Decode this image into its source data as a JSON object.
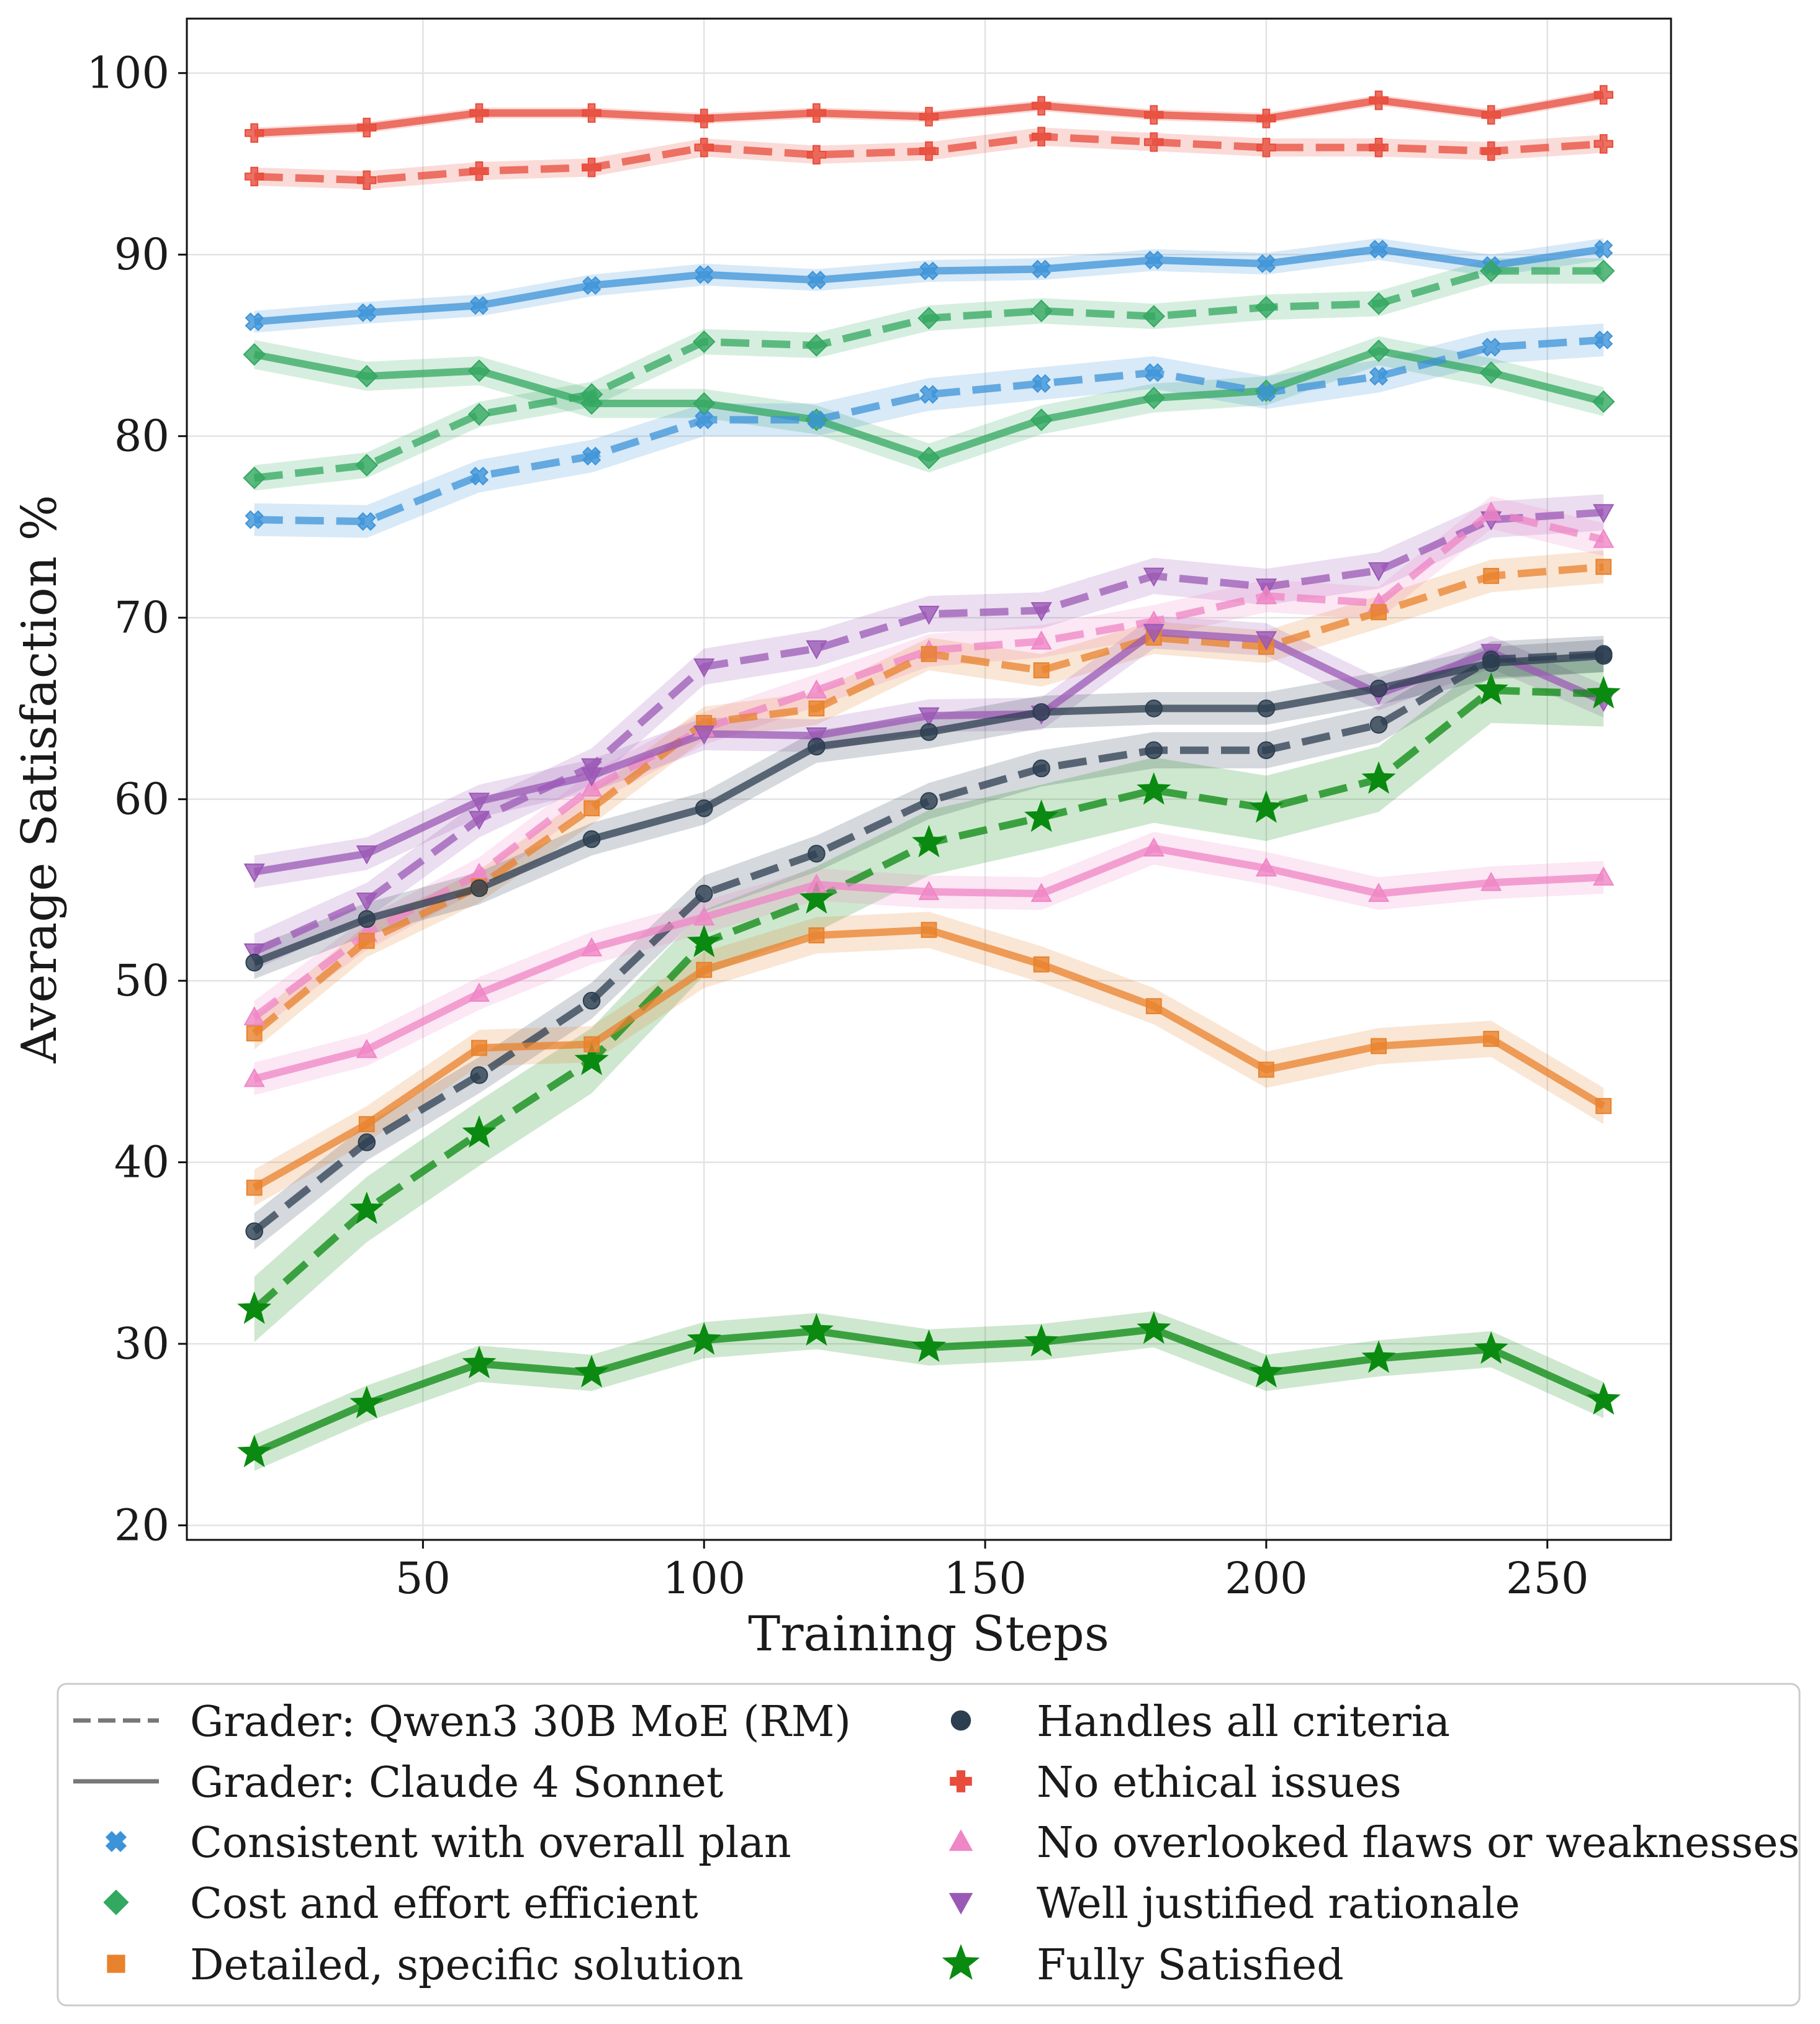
{
  "chart_data": {
    "type": "line",
    "title": "",
    "xlabel": "Training Steps",
    "ylabel": "Average Satisfaction %",
    "xlim": [
      8,
      272
    ],
    "ylim": [
      19.2,
      103
    ],
    "xticks": [
      50,
      100,
      150,
      200,
      250
    ],
    "yticks": [
      20,
      30,
      40,
      50,
      60,
      70,
      80,
      90,
      100
    ],
    "x": [
      20,
      40,
      60,
      80,
      100,
      120,
      140,
      160,
      180,
      200,
      220,
      240,
      260
    ],
    "grid": true,
    "legend_position": "bottom",
    "legend": {
      "styles": [
        {
          "label": "Grader: Qwen3 30B MoE (RM)",
          "linestyle": "dashed"
        },
        {
          "label": "Grader: Claude 4 Sonnet",
          "linestyle": "solid"
        }
      ],
      "criteria": [
        {
          "label": "Consistent with overall plan",
          "color": "#3d93d8",
          "marker": "x"
        },
        {
          "label": "Cost and effort efficient",
          "color": "#33a860",
          "marker": "diamond"
        },
        {
          "label": "Detailed, specific solution",
          "color": "#e8822c",
          "marker": "square"
        },
        {
          "label": "Handles all criteria",
          "color": "#2c3e50",
          "marker": "circle"
        },
        {
          "label": "No ethical issues",
          "color": "#e74c3c",
          "marker": "plus"
        },
        {
          "label": "No overlooked flaws or weaknesses",
          "color": "#ef86c6",
          "marker": "triangle-up"
        },
        {
          "label": "Well justified rationale",
          "color": "#9b59b6",
          "marker": "triangle-down"
        },
        {
          "label": "Fully Satisfied",
          "color": "#0a8a10",
          "marker": "star"
        }
      ]
    },
    "series": [
      {
        "name": "No ethical issues",
        "grader": "Claude 4 Sonnet",
        "linestyle": "solid",
        "color": "#e74c3c",
        "marker": "plus",
        "band": 0.3,
        "values": [
          96.7,
          97.0,
          97.8,
          97.8,
          97.5,
          97.8,
          97.6,
          98.2,
          97.7,
          97.5,
          98.5,
          97.7,
          98.8
        ]
      },
      {
        "name": "No ethical issues",
        "grader": "Qwen3 30B MoE (RM)",
        "linestyle": "dashed",
        "color": "#e74c3c",
        "marker": "plus",
        "band": 0.5,
        "values": [
          94.3,
          94.1,
          94.6,
          94.8,
          95.9,
          95.5,
          95.7,
          96.5,
          96.2,
          95.9,
          95.9,
          95.7,
          96.1
        ]
      },
      {
        "name": "Consistent with overall plan",
        "grader": "Claude 4 Sonnet",
        "linestyle": "solid",
        "color": "#3d93d8",
        "marker": "x",
        "band": 0.6,
        "values": [
          86.3,
          86.8,
          87.2,
          88.3,
          88.9,
          88.6,
          89.1,
          89.2,
          89.7,
          89.5,
          90.3,
          89.4,
          90.3
        ]
      },
      {
        "name": "Cost and effort efficient",
        "grader": "Qwen3 30B MoE (RM)",
        "linestyle": "dashed",
        "color": "#33a860",
        "marker": "diamond",
        "band": 0.7,
        "values": [
          77.7,
          78.4,
          81.2,
          82.3,
          85.2,
          85.0,
          86.5,
          86.9,
          86.6,
          87.1,
          87.3,
          89.1,
          89.1
        ]
      },
      {
        "name": "Cost and effort efficient",
        "grader": "Claude 4 Sonnet",
        "linestyle": "solid",
        "color": "#33a860",
        "marker": "diamond",
        "band": 0.8,
        "values": [
          84.5,
          83.3,
          83.6,
          81.8,
          81.8,
          80.9,
          78.8,
          80.9,
          82.1,
          82.5,
          84.7,
          83.5,
          81.9
        ]
      },
      {
        "name": "Consistent with overall plan",
        "grader": "Qwen3 30B MoE (RM)",
        "linestyle": "dashed",
        "color": "#3d93d8",
        "marker": "x",
        "band": 0.9,
        "values": [
          75.4,
          75.3,
          77.8,
          78.9,
          80.9,
          80.9,
          82.3,
          82.9,
          83.5,
          82.4,
          83.3,
          84.9,
          85.3
        ]
      },
      {
        "name": "Well justified rationale",
        "grader": "Qwen3 30B MoE (RM)",
        "linestyle": "dashed",
        "color": "#9b59b6",
        "marker": "triangle-down",
        "band": 1.0,
        "values": [
          51.6,
          54.4,
          58.9,
          61.8,
          67.3,
          68.3,
          70.2,
          70.4,
          72.3,
          71.7,
          72.6,
          75.4,
          75.8
        ]
      },
      {
        "name": "No overlooked flaws or weaknesses",
        "grader": "Qwen3 30B MoE (RM)",
        "linestyle": "dashed",
        "color": "#ef86c6",
        "marker": "triangle-up",
        "band": 0.9,
        "values": [
          48.0,
          52.6,
          55.9,
          60.6,
          63.9,
          66.0,
          68.2,
          68.7,
          69.8,
          71.2,
          70.8,
          75.8,
          74.3
        ]
      },
      {
        "name": "Detailed, specific solution",
        "grader": "Qwen3 30B MoE (RM)",
        "linestyle": "dashed",
        "color": "#e8822c",
        "marker": "square",
        "band": 0.9,
        "values": [
          47.1,
          52.2,
          55.2,
          59.5,
          64.2,
          65.0,
          68.0,
          67.1,
          68.9,
          68.4,
          70.3,
          72.3,
          72.8
        ]
      },
      {
        "name": "Well justified rationale",
        "grader": "Claude 4 Sonnet",
        "linestyle": "solid",
        "color": "#9b59b6",
        "marker": "triangle-down",
        "band": 0.9,
        "values": [
          56.0,
          57.0,
          59.9,
          61.3,
          63.6,
          63.5,
          64.6,
          64.7,
          69.2,
          68.8,
          65.8,
          68.1,
          65.4
        ]
      },
      {
        "name": "Handles all criteria",
        "grader": "Claude 4 Sonnet",
        "linestyle": "solid",
        "color": "#2c3e50",
        "marker": "circle",
        "band": 0.9,
        "values": [
          51.0,
          53.4,
          55.1,
          57.8,
          59.5,
          62.9,
          63.7,
          64.8,
          65.0,
          65.0,
          66.1,
          67.5,
          67.9
        ]
      },
      {
        "name": "Handles all criteria",
        "grader": "Qwen3 30B MoE (RM)",
        "linestyle": "dashed",
        "color": "#2c3e50",
        "marker": "circle",
        "band": 1.0,
        "values": [
          36.2,
          41.1,
          44.8,
          48.9,
          54.8,
          57.0,
          59.9,
          61.7,
          62.7,
          62.7,
          64.1,
          67.7,
          68.0
        ]
      },
      {
        "name": "Fully Satisfied",
        "grader": "Qwen3 30B MoE (RM)",
        "linestyle": "dashed",
        "color": "#0a8a10",
        "marker": "star",
        "band": 1.8,
        "values": [
          31.9,
          37.4,
          41.6,
          45.6,
          52.1,
          54.5,
          57.6,
          59.0,
          60.5,
          59.5,
          61.1,
          66.0,
          65.8
        ]
      },
      {
        "name": "No overlooked flaws or weaknesses",
        "grader": "Claude 4 Sonnet",
        "linestyle": "solid",
        "color": "#ef86c6",
        "marker": "triangle-up",
        "band": 0.9,
        "values": [
          44.6,
          46.2,
          49.3,
          51.8,
          53.5,
          55.3,
          54.9,
          54.8,
          57.3,
          56.2,
          54.8,
          55.4,
          55.7
        ]
      },
      {
        "name": "Detailed, specific solution",
        "grader": "Claude 4 Sonnet",
        "linestyle": "solid",
        "color": "#e8822c",
        "marker": "square",
        "band": 1.0,
        "values": [
          38.6,
          42.1,
          46.3,
          46.5,
          50.6,
          52.5,
          52.8,
          50.9,
          48.6,
          45.1,
          46.4,
          46.8,
          43.1
        ]
      },
      {
        "name": "Fully Satisfied",
        "grader": "Claude 4 Sonnet",
        "linestyle": "solid",
        "color": "#0a8a10",
        "marker": "star",
        "band": 1.0,
        "values": [
          24.0,
          26.7,
          28.9,
          28.4,
          30.2,
          30.7,
          29.8,
          30.1,
          30.8,
          28.4,
          29.2,
          29.7,
          26.9
        ]
      }
    ]
  }
}
